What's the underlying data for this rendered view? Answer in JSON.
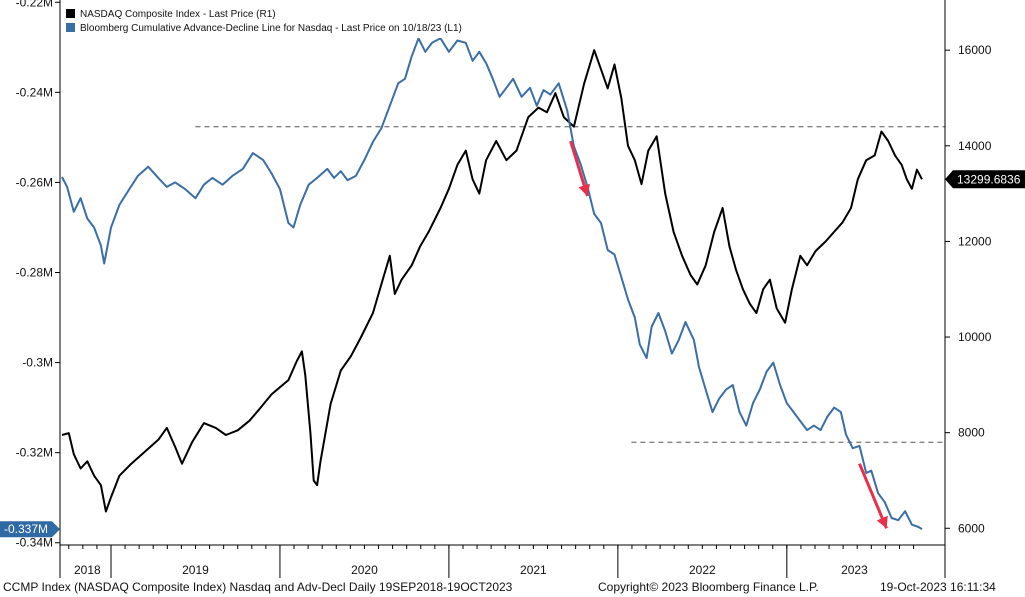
{
  "chart_data": {
    "type": "line",
    "title": "",
    "legend": {
      "placement": "top-left",
      "entries": [
        {
          "name": "NASDAQ Composite Index - Last Price (R1)",
          "color": "#000000"
        },
        {
          "name": "Bloomberg Cumulative Advance-Decline Line for Nasdaq - Last Price on 10/18/23 (L1)",
          "color": "#3a6ea5"
        }
      ]
    },
    "x_axis": {
      "range": [
        2018.71,
        2023.8
      ],
      "year_labels": [
        {
          "label": "2018",
          "center": 2018.86
        },
        {
          "label": "2019",
          "center": 2019.5
        },
        {
          "label": "2020",
          "center": 2020.5
        },
        {
          "label": "2021",
          "center": 2021.5
        },
        {
          "label": "2022",
          "center": 2022.5
        },
        {
          "label": "2023",
          "center": 2023.4
        }
      ],
      "year_boundaries": [
        2019,
        2020,
        2021,
        2022,
        2023
      ]
    },
    "left_axis": {
      "units": "M",
      "range": [
        -0.3405,
        -0.2195
      ],
      "ticks": [
        {
          "value": -0.22,
          "label": "-0.22M"
        },
        {
          "value": -0.24,
          "label": "-0.24M"
        },
        {
          "value": -0.26,
          "label": "-0.26M"
        },
        {
          "value": -0.28,
          "label": "-0.28M"
        },
        {
          "value": -0.3,
          "label": "-0.3M"
        },
        {
          "value": -0.32,
          "label": "-0.32M"
        },
        {
          "value": -0.34,
          "label": "-0.34M"
        }
      ],
      "last_value": -0.337,
      "last_value_label": "-0.337M"
    },
    "right_axis": {
      "range": [
        5650,
        17050
      ],
      "ticks": [
        {
          "value": 6000,
          "label": "6000"
        },
        {
          "value": 8000,
          "label": "8000"
        },
        {
          "value": 10000,
          "label": "10000"
        },
        {
          "value": 12000,
          "label": "12000"
        },
        {
          "value": 14000,
          "label": "14000"
        },
        {
          "value": 16000,
          "label": "16000"
        }
      ],
      "last_value": 13299.6836,
      "last_value_label": "13299.6836"
    },
    "series": [
      {
        "name": "NASDAQ Composite Index",
        "axis": "right",
        "color": "#000000",
        "points": [
          [
            2018.71,
            7950
          ],
          [
            2018.75,
            7990
          ],
          [
            2018.78,
            7550
          ],
          [
            2018.82,
            7250
          ],
          [
            2018.86,
            7400
          ],
          [
            2018.9,
            7100
          ],
          [
            2018.94,
            6900
          ],
          [
            2018.97,
            6350
          ],
          [
            2019.0,
            6650
          ],
          [
            2019.05,
            7100
          ],
          [
            2019.12,
            7350
          ],
          [
            2019.2,
            7600
          ],
          [
            2019.28,
            7850
          ],
          [
            2019.33,
            8100
          ],
          [
            2019.38,
            7700
          ],
          [
            2019.42,
            7350
          ],
          [
            2019.48,
            7800
          ],
          [
            2019.55,
            8200
          ],
          [
            2019.62,
            8100
          ],
          [
            2019.68,
            7950
          ],
          [
            2019.75,
            8050
          ],
          [
            2019.82,
            8250
          ],
          [
            2019.88,
            8500
          ],
          [
            2019.95,
            8800
          ],
          [
            2020.05,
            9100
          ],
          [
            2020.1,
            9500
          ],
          [
            2020.13,
            9700
          ],
          [
            2020.15,
            9200
          ],
          [
            2020.18,
            8000
          ],
          [
            2020.2,
            7000
          ],
          [
            2020.22,
            6900
          ],
          [
            2020.24,
            7400
          ],
          [
            2020.3,
            8600
          ],
          [
            2020.36,
            9300
          ],
          [
            2020.42,
            9600
          ],
          [
            2020.48,
            10000
          ],
          [
            2020.55,
            10500
          ],
          [
            2020.6,
            11100
          ],
          [
            2020.65,
            11700
          ],
          [
            2020.68,
            10900
          ],
          [
            2020.72,
            11200
          ],
          [
            2020.78,
            11500
          ],
          [
            2020.83,
            11900
          ],
          [
            2020.88,
            12200
          ],
          [
            2020.95,
            12700
          ],
          [
            2021.0,
            13100
          ],
          [
            2021.05,
            13600
          ],
          [
            2021.1,
            13900
          ],
          [
            2021.14,
            13300
          ],
          [
            2021.18,
            13000
          ],
          [
            2021.22,
            13700
          ],
          [
            2021.28,
            14100
          ],
          [
            2021.34,
            13700
          ],
          [
            2021.4,
            13900
          ],
          [
            2021.47,
            14600
          ],
          [
            2021.53,
            14800
          ],
          [
            2021.58,
            14700
          ],
          [
            2021.63,
            15100
          ],
          [
            2021.68,
            14600
          ],
          [
            2021.74,
            14400
          ],
          [
            2021.8,
            15300
          ],
          [
            2021.86,
            16000
          ],
          [
            2021.9,
            15600
          ],
          [
            2021.94,
            15200
          ],
          [
            2021.98,
            15700
          ],
          [
            2022.02,
            15000
          ],
          [
            2022.06,
            14000
          ],
          [
            2022.1,
            13700
          ],
          [
            2022.14,
            13200
          ],
          [
            2022.18,
            13900
          ],
          [
            2022.23,
            14200
          ],
          [
            2022.28,
            13000
          ],
          [
            2022.33,
            12200
          ],
          [
            2022.38,
            11700
          ],
          [
            2022.43,
            11300
          ],
          [
            2022.47,
            11100
          ],
          [
            2022.52,
            11500
          ],
          [
            2022.57,
            12200
          ],
          [
            2022.62,
            12700
          ],
          [
            2022.66,
            11900
          ],
          [
            2022.7,
            11400
          ],
          [
            2022.74,
            11000
          ],
          [
            2022.78,
            10700
          ],
          [
            2022.82,
            10500
          ],
          [
            2022.86,
            11000
          ],
          [
            2022.9,
            11200
          ],
          [
            2022.94,
            10600
          ],
          [
            2022.99,
            10300
          ],
          [
            2023.03,
            11000
          ],
          [
            2023.08,
            11700
          ],
          [
            2023.12,
            11500
          ],
          [
            2023.17,
            11800
          ],
          [
            2023.23,
            12000
          ],
          [
            2023.28,
            12200
          ],
          [
            2023.33,
            12400
          ],
          [
            2023.38,
            12700
          ],
          [
            2023.42,
            13300
          ],
          [
            2023.47,
            13700
          ],
          [
            2023.52,
            13800
          ],
          [
            2023.56,
            14300
          ],
          [
            2023.6,
            14100
          ],
          [
            2023.64,
            13800
          ],
          [
            2023.68,
            13600
          ],
          [
            2023.71,
            13300
          ],
          [
            2023.74,
            13100
          ],
          [
            2023.77,
            13500
          ],
          [
            2023.8,
            13300
          ]
        ]
      },
      {
        "name": "Bloomberg Cumulative Advance-Decline Line for Nasdaq",
        "axis": "left",
        "color": "#3a6ea5",
        "points": [
          [
            2018.71,
            -0.2588
          ],
          [
            2018.74,
            -0.261
          ],
          [
            2018.78,
            -0.2665
          ],
          [
            2018.82,
            -0.2635
          ],
          [
            2018.86,
            -0.268
          ],
          [
            2018.9,
            -0.27
          ],
          [
            2018.94,
            -0.274
          ],
          [
            2018.96,
            -0.278
          ],
          [
            2019.0,
            -0.27
          ],
          [
            2019.05,
            -0.265
          ],
          [
            2019.1,
            -0.262
          ],
          [
            2019.16,
            -0.2585
          ],
          [
            2019.22,
            -0.2565
          ],
          [
            2019.28,
            -0.259
          ],
          [
            2019.33,
            -0.261
          ],
          [
            2019.38,
            -0.26
          ],
          [
            2019.44,
            -0.2615
          ],
          [
            2019.5,
            -0.2635
          ],
          [
            2019.55,
            -0.2605
          ],
          [
            2019.6,
            -0.259
          ],
          [
            2019.66,
            -0.2605
          ],
          [
            2019.72,
            -0.2585
          ],
          [
            2019.78,
            -0.257
          ],
          [
            2019.84,
            -0.2535
          ],
          [
            2019.9,
            -0.255
          ],
          [
            2019.95,
            -0.258
          ],
          [
            2020.0,
            -0.2615
          ],
          [
            2020.05,
            -0.269
          ],
          [
            2020.08,
            -0.27
          ],
          [
            2020.12,
            -0.265
          ],
          [
            2020.17,
            -0.2605
          ],
          [
            2020.22,
            -0.259
          ],
          [
            2020.28,
            -0.257
          ],
          [
            2020.32,
            -0.259
          ],
          [
            2020.36,
            -0.2575
          ],
          [
            2020.4,
            -0.2595
          ],
          [
            2020.45,
            -0.2585
          ],
          [
            2020.5,
            -0.255
          ],
          [
            2020.55,
            -0.251
          ],
          [
            2020.6,
            -0.248
          ],
          [
            2020.65,
            -0.243
          ],
          [
            2020.7,
            -0.238
          ],
          [
            2020.74,
            -0.237
          ],
          [
            2020.78,
            -0.232
          ],
          [
            2020.82,
            -0.228
          ],
          [
            2020.86,
            -0.231
          ],
          [
            2020.9,
            -0.229
          ],
          [
            2020.95,
            -0.228
          ],
          [
            2021.0,
            -0.231
          ],
          [
            2021.05,
            -0.2285
          ],
          [
            2021.1,
            -0.229
          ],
          [
            2021.14,
            -0.233
          ],
          [
            2021.18,
            -0.231
          ],
          [
            2021.22,
            -0.2335
          ],
          [
            2021.26,
            -0.237
          ],
          [
            2021.3,
            -0.241
          ],
          [
            2021.34,
            -0.239
          ],
          [
            2021.38,
            -0.237
          ],
          [
            2021.43,
            -0.241
          ],
          [
            2021.48,
            -0.239
          ],
          [
            2021.52,
            -0.243
          ],
          [
            2021.56,
            -0.2395
          ],
          [
            2021.6,
            -0.2405
          ],
          [
            2021.65,
            -0.238
          ],
          [
            2021.7,
            -0.244
          ],
          [
            2021.74,
            -0.252
          ],
          [
            2021.78,
            -0.256
          ],
          [
            2021.82,
            -0.261
          ],
          [
            2021.86,
            -0.267
          ],
          [
            2021.9,
            -0.269
          ],
          [
            2021.94,
            -0.275
          ],
          [
            2021.98,
            -0.276
          ],
          [
            2022.02,
            -0.281
          ],
          [
            2022.06,
            -0.286
          ],
          [
            2022.1,
            -0.29
          ],
          [
            2022.13,
            -0.296
          ],
          [
            2022.17,
            -0.299
          ],
          [
            2022.2,
            -0.292
          ],
          [
            2022.24,
            -0.289
          ],
          [
            2022.28,
            -0.293
          ],
          [
            2022.32,
            -0.298
          ],
          [
            2022.36,
            -0.295
          ],
          [
            2022.4,
            -0.291
          ],
          [
            2022.45,
            -0.295
          ],
          [
            2022.48,
            -0.301
          ],
          [
            2022.52,
            -0.306
          ],
          [
            2022.56,
            -0.311
          ],
          [
            2022.6,
            -0.308
          ],
          [
            2022.64,
            -0.306
          ],
          [
            2022.68,
            -0.305
          ],
          [
            2022.72,
            -0.311
          ],
          [
            2022.76,
            -0.314
          ],
          [
            2022.8,
            -0.309
          ],
          [
            2022.84,
            -0.306
          ],
          [
            2022.88,
            -0.302
          ],
          [
            2022.92,
            -0.3
          ],
          [
            2022.96,
            -0.305
          ],
          [
            2023.0,
            -0.309
          ],
          [
            2023.04,
            -0.311
          ],
          [
            2023.08,
            -0.313
          ],
          [
            2023.12,
            -0.315
          ],
          [
            2023.16,
            -0.314
          ],
          [
            2023.2,
            -0.315
          ],
          [
            2023.24,
            -0.312
          ],
          [
            2023.28,
            -0.31
          ],
          [
            2023.32,
            -0.311
          ],
          [
            2023.35,
            -0.316
          ],
          [
            2023.39,
            -0.319
          ],
          [
            2023.43,
            -0.3185
          ],
          [
            2023.47,
            -0.3245
          ],
          [
            2023.5,
            -0.324
          ],
          [
            2023.54,
            -0.329
          ],
          [
            2023.58,
            -0.331
          ],
          [
            2023.62,
            -0.3345
          ],
          [
            2023.66,
            -0.335
          ],
          [
            2023.7,
            -0.333
          ],
          [
            2023.74,
            -0.336
          ],
          [
            2023.78,
            -0.3365
          ],
          [
            2023.8,
            -0.337
          ]
        ]
      }
    ],
    "reference_lines": [
      {
        "axis": "right",
        "value": 14400,
        "from": 2019.5,
        "to": 2024.3,
        "style": "dashed"
      },
      {
        "axis": "right",
        "value": 7800,
        "from": 2022.08,
        "to": 2024.3,
        "style": "dashed"
      }
    ],
    "annotations": [
      {
        "type": "arrow",
        "color": "#e8304a",
        "from": [
          2021.72,
          14100
        ],
        "to": [
          2021.82,
          12950
        ]
      },
      {
        "type": "arrow",
        "color": "#e8304a",
        "from": [
          2023.43,
          7350
        ],
        "to": [
          2023.59,
          6000
        ]
      }
    ]
  },
  "footer": {
    "left": "CCMP Index (NASDAQ Composite Index) Nasdaq and Adv-Decl  Daily 19SEP2018-19OCT2023",
    "center": "Copyright© 2023 Bloomberg Finance L.P.",
    "right": "19-Oct-2023 16:11:34"
  },
  "colors": {
    "black_series": "#000000",
    "blue_series": "#3a6ea5",
    "arrow": "#e8304a",
    "last_value_blue_bg": "#2f6aa5",
    "last_value_black_bg": "#000000"
  }
}
